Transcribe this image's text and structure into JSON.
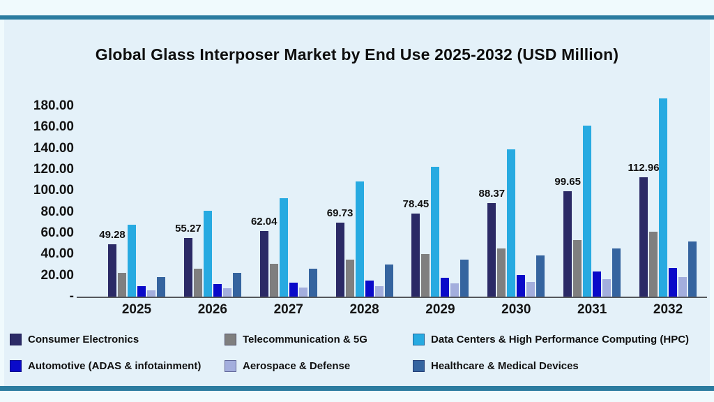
{
  "page": {
    "title": "Global Glass Interposer Market by End Use 2025-2032 (USD Million)"
  },
  "theme": {
    "outer_bg": "#f0fafd",
    "content_bg": "#e4f1f9",
    "accent_rule": "#2b7ca0",
    "axis_line": "#55585c",
    "text": "#0e0e0e"
  },
  "chart_data": {
    "type": "bar",
    "title": "Global Glass Interposer Market by End Use 2025-2032 (USD Million)",
    "categories": [
      "2025",
      "2026",
      "2027",
      "2028",
      "2029",
      "2030",
      "2031",
      "2032"
    ],
    "series": [
      {
        "name": "Consumer Electronics",
        "color": "#2b2a66",
        "values": [
          49.28,
          55.27,
          62.04,
          69.73,
          78.45,
          88.37,
          99.65,
          112.96
        ]
      },
      {
        "name": "Telecommunication & 5G",
        "color": "#7f7f7f",
        "values": [
          22.6,
          26.6,
          30.8,
          35.0,
          40.5,
          45.8,
          53.2,
          61.3
        ]
      },
      {
        "name": "Data Centers & High Performance Computing (HPC)",
        "color": "#27aae1",
        "values": [
          68.0,
          81.3,
          93.0,
          108.5,
          122.5,
          139.0,
          161.5,
          187.0
        ]
      },
      {
        "name": "Automotive (ADAS & infotainment)",
        "color": "#0a0ac9",
        "values": [
          10.0,
          12.2,
          13.5,
          15.1,
          17.7,
          20.4,
          23.9,
          27.1
        ]
      },
      {
        "name": "Aerospace & Defense",
        "color": "#a3aedd",
        "values": [
          6.2,
          7.8,
          8.8,
          10.2,
          12.6,
          14.0,
          16.6,
          18.8
        ]
      },
      {
        "name": "Healthcare & Medical Devices",
        "color": "#35649f",
        "values": [
          18.8,
          22.6,
          26.1,
          30.2,
          34.8,
          39.0,
          45.4,
          52.0
        ]
      }
    ],
    "bar_labels_series": "Consumer Electronics",
    "bar_labels": [
      "49.28",
      "55.27",
      "62.04",
      "69.73",
      "78.45",
      "88.37",
      "99.65",
      "112.96"
    ],
    "y_ticks": [
      "180.00",
      "160.00",
      "140.00",
      "120.00",
      "100.00",
      "80.00",
      "60.00",
      "40.00",
      "20.00",
      "-"
    ],
    "ylim": [
      0,
      180
    ],
    "grid": false,
    "legend_position": "bottom",
    "legend_rows": 2
  }
}
